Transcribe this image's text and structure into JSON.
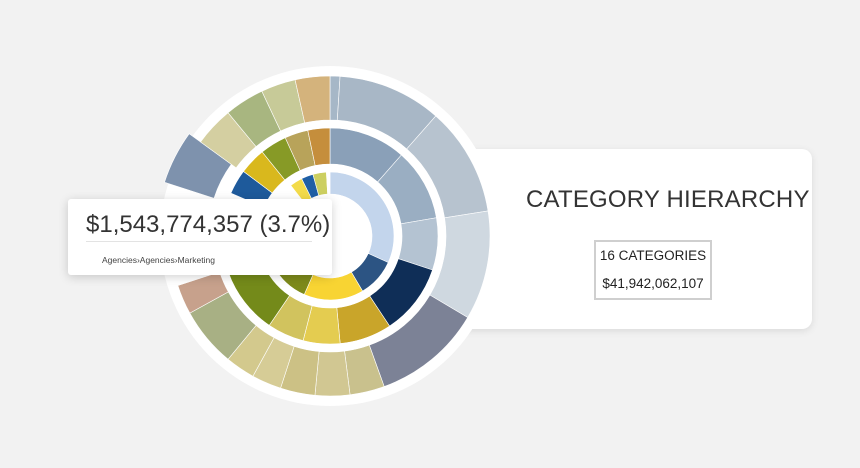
{
  "chart_data": {
    "type": "sunburst",
    "title": "CATEGORY HIERARCHY",
    "summary": {
      "categories": "16 CATEGORIES",
      "total": "$41,942,062,107"
    },
    "tooltip": {
      "value": "$1,543,774,357",
      "percent": "(3.7%)",
      "path": "Agencies›Agencies›Marketing"
    },
    "inner_ring": [
      {
        "share": 0.318,
        "color": "#c3d5ec"
      },
      {
        "share": 0.097,
        "color": "#2c5483"
      },
      {
        "share": 0.151,
        "color": "#f8d433"
      },
      {
        "share": 0.107,
        "color": "#7d8a1b"
      },
      {
        "share": 0.037,
        "color": "#ffffff",
        "highlighted": true
      },
      {
        "share": 0.185,
        "color": "#ffffff",
        "hidden_by_tooltip": true
      },
      {
        "share": 0.032,
        "color": "#f3db4a"
      },
      {
        "share": 0.03,
        "color": "#1f5fa5"
      },
      {
        "share": 0.034,
        "color": "#cccf60"
      },
      {
        "share": 0.009,
        "color": "#ffffff"
      }
    ],
    "middle_ring": [
      {
        "share": 0.115,
        "color": "#8aa0b8"
      },
      {
        "share": 0.108,
        "color": "#9aaec2"
      },
      {
        "share": 0.078,
        "color": "#b4c3d2"
      },
      {
        "share": 0.106,
        "color": "#0f2e57"
      },
      {
        "share": 0.078,
        "color": "#c9a52a"
      },
      {
        "share": 0.055,
        "color": "#e4cc50"
      },
      {
        "share": 0.055,
        "color": "#d1c35e"
      },
      {
        "share": 0.1,
        "color": "#748a1a"
      },
      {
        "share": 0.12,
        "color": "#ffffff",
        "hidden_by_tooltip": true
      },
      {
        "share": 0.037,
        "color": "#1e5a9b"
      },
      {
        "share": 0.04,
        "color": "#d9b81d"
      },
      {
        "share": 0.04,
        "color": "#879a26"
      },
      {
        "share": 0.035,
        "color": "#b8a35a"
      },
      {
        "share": 0.033,
        "color": "#c58e3c"
      }
    ],
    "outer_ring": [
      {
        "share": 0.01,
        "color": "#a6b7c7"
      },
      {
        "share": 0.105,
        "color": "#a8b7c6"
      },
      {
        "share": 0.11,
        "color": "#b7c3cf"
      },
      {
        "share": 0.11,
        "color": "#cfd8e0"
      },
      {
        "share": 0.11,
        "color": "#7c8296"
      },
      {
        "share": 0.035,
        "color": "#c9c18d"
      },
      {
        "share": 0.035,
        "color": "#d1c792"
      },
      {
        "share": 0.035,
        "color": "#ccc185"
      },
      {
        "share": 0.03,
        "color": "#d6cc96"
      },
      {
        "share": 0.03,
        "color": "#d3c98d"
      },
      {
        "share": 0.06,
        "color": "#a8b084"
      },
      {
        "share": 0.03,
        "color": "#c7a18c"
      },
      {
        "share": 0.1,
        "color": "#ffffff",
        "hidden_by_tooltip": true
      },
      {
        "share": 0.05,
        "color": "#7e92ad",
        "exploded": true
      },
      {
        "share": 0.04,
        "color": "#d4cfa1"
      },
      {
        "share": 0.04,
        "color": "#a8b680"
      },
      {
        "share": 0.035,
        "color": "#c7ca98"
      },
      {
        "share": 0.035,
        "color": "#d4b37c"
      }
    ]
  }
}
